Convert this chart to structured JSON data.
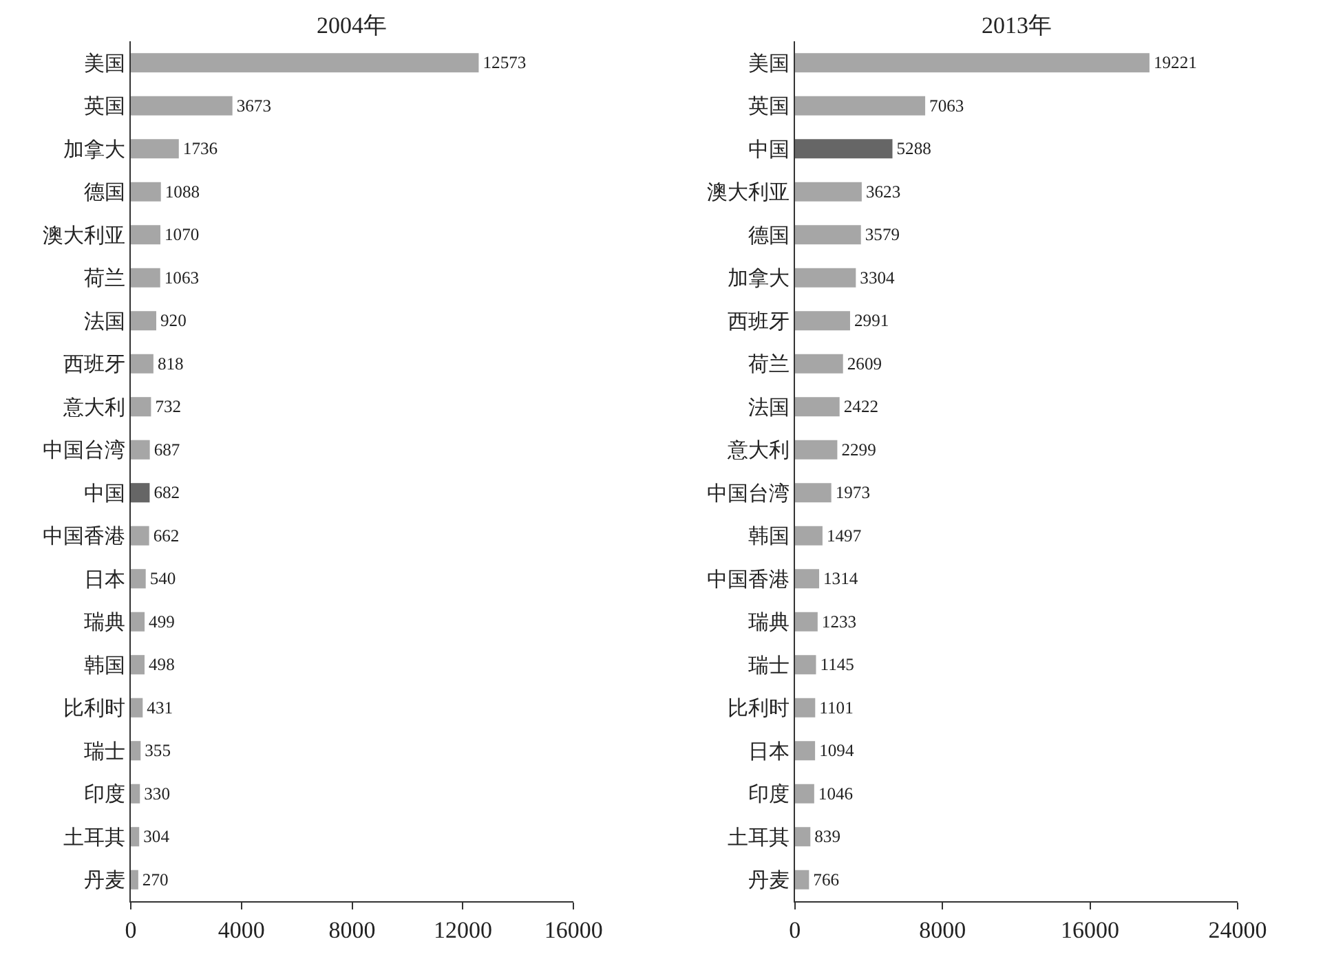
{
  "chart_data": [
    {
      "type": "bar",
      "orientation": "horizontal",
      "title": "2004年",
      "categories": [
        "美国",
        "英国",
        "加拿大",
        "德国",
        "澳大利亚",
        "荷兰",
        "法国",
        "西班牙",
        "意大利",
        "中国台湾",
        "中国",
        "中国香港",
        "日本",
        "瑞典",
        "韩国",
        "比利时",
        "瑞士",
        "印度",
        "土耳其",
        "丹麦"
      ],
      "values": [
        12573,
        3673,
        1736,
        1088,
        1070,
        1063,
        920,
        818,
        732,
        687,
        682,
        662,
        540,
        499,
        498,
        431,
        355,
        330,
        304,
        270
      ],
      "colors": [
        "#a6a6a6",
        "#a6a6a6",
        "#a6a6a6",
        "#a6a6a6",
        "#a6a6a6",
        "#a6a6a6",
        "#a6a6a6",
        "#a6a6a6",
        "#a6a6a6",
        "#a6a6a6",
        "#666666",
        "#a6a6a6",
        "#a6a6a6",
        "#a6a6a6",
        "#a6a6a6",
        "#a6a6a6",
        "#a6a6a6",
        "#a6a6a6",
        "#a6a6a6",
        "#a6a6a6"
      ],
      "xlim": [
        0,
        16000
      ],
      "xticks": [
        0,
        4000,
        8000,
        12000,
        16000
      ],
      "data_labels": true
    },
    {
      "type": "bar",
      "orientation": "horizontal",
      "title": "2013年",
      "categories": [
        "美国",
        "英国",
        "中国",
        "澳大利亚",
        "德国",
        "加拿大",
        "西班牙",
        "荷兰",
        "法国",
        "意大利",
        "中国台湾",
        "韩国",
        "中国香港",
        "瑞典",
        "瑞士",
        "比利时",
        "日本",
        "印度",
        "土耳其",
        "丹麦"
      ],
      "values": [
        19221,
        7063,
        5288,
        3623,
        3579,
        3304,
        2991,
        2609,
        2422,
        2299,
        1973,
        1497,
        1314,
        1233,
        1145,
        1101,
        1094,
        1046,
        839,
        766
      ],
      "colors": [
        "#a6a6a6",
        "#a6a6a6",
        "#666666",
        "#a6a6a6",
        "#a6a6a6",
        "#a6a6a6",
        "#a6a6a6",
        "#a6a6a6",
        "#a6a6a6",
        "#a6a6a6",
        "#a6a6a6",
        "#a6a6a6",
        "#a6a6a6",
        "#a6a6a6",
        "#a6a6a6",
        "#a6a6a6",
        "#a6a6a6",
        "#a6a6a6",
        "#a6a6a6",
        "#a6a6a6"
      ],
      "xlim": [
        0,
        24000
      ],
      "xticks": [
        0,
        8000,
        16000,
        24000
      ],
      "data_labels": true
    }
  ]
}
